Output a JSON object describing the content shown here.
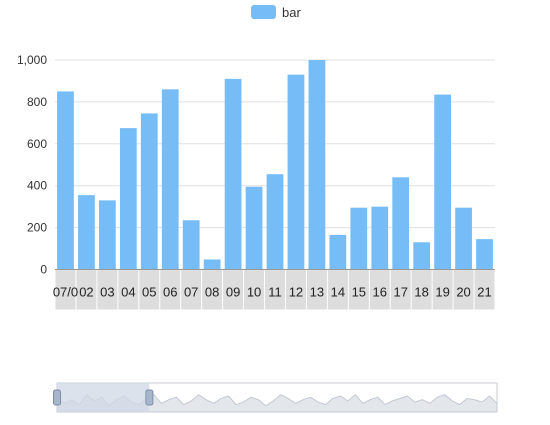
{
  "colors": {
    "bar": "#76bdf7",
    "grid": "#e0e0e0",
    "axis_label": "#333333",
    "category_band": "#dddddd",
    "zoom_window": "#d0d8e6",
    "zoom_area": "#e3e6ea",
    "zoom_border": "#c8cdd6"
  },
  "chart_data": {
    "type": "bar",
    "title": "",
    "xlabel": "",
    "ylabel": "",
    "legend": {
      "items": [
        "bar"
      ],
      "position": "top-center"
    },
    "ylim": [
      0,
      1000
    ],
    "yticks": [
      0,
      200,
      400,
      600,
      800,
      1000
    ],
    "ytick_labels": [
      "0",
      "200",
      "400",
      "600",
      "800",
      "1,000"
    ],
    "grid": true,
    "categories": [
      "07/0",
      "02",
      "03",
      "04",
      "05",
      "06",
      "07",
      "08",
      "09",
      "10",
      "11",
      "12",
      "13",
      "14",
      "15",
      "16",
      "17",
      "18",
      "19",
      "20",
      "21"
    ],
    "series": [
      {
        "name": "bar",
        "values": [
          850,
          355,
          330,
          675,
          745,
          860,
          235,
          48,
          910,
          395,
          455,
          930,
          1000,
          165,
          295,
          300,
          440,
          130,
          835,
          295,
          145
        ]
      }
    ],
    "data_zoom": {
      "start_fraction": 0.0,
      "end_fraction": 0.21,
      "preview_values": [
        0.55,
        0.35,
        0.5,
        0.3,
        0.7,
        0.45,
        0.6,
        0.25,
        0.5,
        0.65,
        0.4,
        0.3,
        0.55,
        0.7,
        0.35,
        0.5,
        0.6,
        0.3,
        0.45,
        0.7,
        0.5,
        0.35,
        0.55,
        0.65,
        0.3,
        0.4,
        0.6,
        0.5,
        0.25,
        0.45,
        0.7,
        0.55,
        0.35,
        0.5,
        0.6,
        0.4,
        0.3,
        0.55,
        0.65,
        0.45,
        0.7,
        0.35,
        0.5,
        0.6,
        0.3,
        0.45,
        0.55,
        0.65,
        0.4,
        0.5,
        0.35,
        0.6,
        0.7,
        0.45,
        0.3,
        0.55,
        0.5,
        0.4,
        0.65,
        0.35
      ]
    }
  }
}
